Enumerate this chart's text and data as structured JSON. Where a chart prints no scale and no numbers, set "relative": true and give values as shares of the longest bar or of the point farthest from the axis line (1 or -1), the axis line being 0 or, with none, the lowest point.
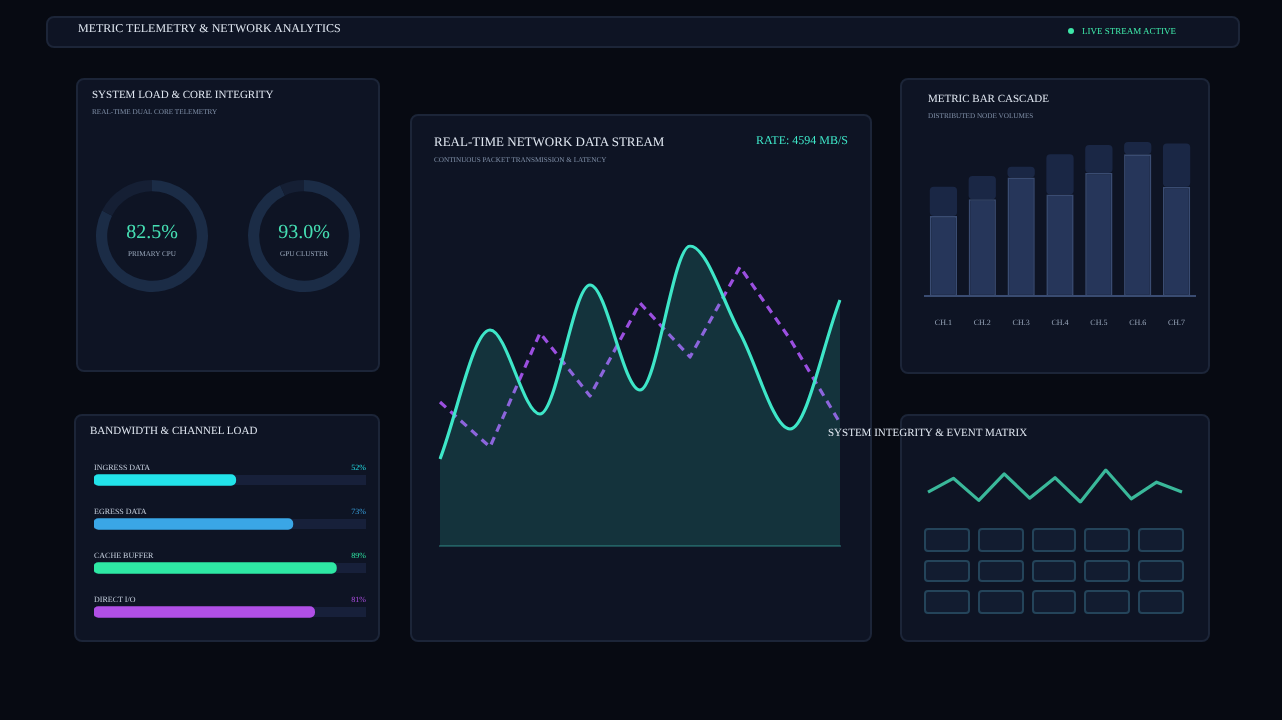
{
  "chart_data": [
    {
      "type": "other",
      "title": "METRIC TELEMETRY & NETWORK ANALYTICS",
      "annotations": [
        "LIVE STREAM ACTIVE"
      ]
    },
    {
      "type": "donut",
      "title": "SYSTEM LOAD & CORE INTEGRITY",
      "subtitle": "REAL-TIME DUAL CORE TELEMETRY",
      "categories": [
        "PRIMARY CPU",
        null
      ],
      "values": [
        82.5,
        17.5
      ],
      "colors": [
        "#1b2c46",
        "#151f34"
      ],
      "value_labels": [
        "82.5%",
        null
      ]
    },
    {
      "type": "donut",
      "categories": [
        "GPU CLUSTER",
        null
      ],
      "values": [
        93.0,
        7.0
      ],
      "colors": [
        "#1b2c46",
        "#151f34"
      ],
      "value_labels": [
        "93.0%",
        null
      ]
    },
    {
      "type": "line",
      "title": "REAL-TIME NETWORK DATA STREAM",
      "subtitle": "CONTINUOUS PACKET TRANSMISSION & LATENCY",
      "annotations": [
        "RATE: 4594 MB/S"
      ],
      "relative": true,
      "categories": [
        null,
        null,
        null,
        null,
        null,
        null,
        null,
        null,
        null
      ],
      "series": [
        {
          "type": "area",
          "color": "#3ee6c8",
          "values": [
            0.29,
            0.72,
            0.44,
            0.87,
            0.52,
            1,
            0.71,
            0.39,
            0.82
          ]
        },
        {
          "type": "line",
          "color": "#9b4fe0",
          "line_style": "dashed",
          "values": [
            0.48,
            0.33,
            0.71,
            0.5,
            0.81,
            0.63,
            0.93,
            0.69,
            0.41
          ]
        }
      ]
    },
    {
      "type": "bar",
      "title": "METRIC BAR CASCADE",
      "subtitle": "DISTRIBUTED NODE VOLUMES",
      "relative": true,
      "stacked": true,
      "categories": [
        "CH.1",
        "CH.2",
        "CH.3",
        "CH.4",
        "CH.5",
        "CH.6",
        "CH.7"
      ],
      "series": [
        {
          "color": "#26365a",
          "values": [
            0.52,
            0.63,
            0.77,
            0.66,
            0.8,
            0.92,
            0.71
          ]
        },
        {
          "color": "#1a2745",
          "values": [
            0.19,
            0.15,
            0.07,
            0.26,
            0.18,
            0.08,
            0.28
          ]
        }
      ]
    },
    {
      "type": "bar",
      "orientation": "horizontal",
      "title": "BANDWIDTH & CHANNEL LOAD",
      "categories": [
        "INGRESS DATA",
        "EGRESS DATA",
        "CACHE BUFFER",
        "DIRECT I/O"
      ],
      "values": [
        52,
        73,
        89,
        81
      ],
      "colors": [
        "#22e3ea",
        "#3aa6e6",
        "#2ee8a4",
        "#b04fe6"
      ],
      "value_labels": [
        "52%",
        "73%",
        "89%",
        "81%"
      ],
      "xlim": [
        0,
        100
      ],
      "tick_labels": false
    },
    {
      "type": "line",
      "title": "SYSTEM INTEGRITY & EVENT MATRIX",
      "relative": true,
      "categories": [
        null,
        null,
        null,
        null,
        null,
        null,
        null,
        null,
        null,
        null,
        null
      ],
      "values": [
        0.31,
        0.74,
        0.05,
        0.88,
        0.12,
        0.76,
        0,
        1,
        0.1,
        0.62,
        0.31
      ],
      "color": "#3ab89a"
    }
  ]
}
